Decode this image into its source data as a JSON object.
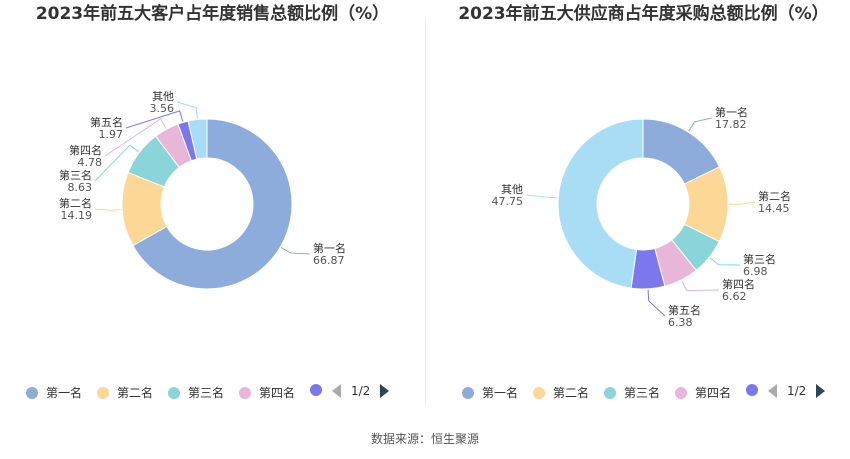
{
  "chart_data": [
    {
      "type": "pie",
      "title": "2023年前五大客户占年度销售总额比例（%）",
      "categories": [
        "第一名",
        "第二名",
        "第三名",
        "第四名",
        "第五名",
        "其他"
      ],
      "values": [
        66.87,
        14.19,
        8.63,
        4.78,
        1.97,
        3.56
      ],
      "colors": [
        "#8eacdb",
        "#fdd795",
        "#8ad5d9",
        "#e7b6d9",
        "#7b78ed",
        "#a9ddf6"
      ],
      "legend_visible": [
        "第一名",
        "第二名",
        "第三名",
        "第四名",
        "第五名"
      ],
      "legend_placement": "bottom",
      "pager": "1/2"
    },
    {
      "type": "pie",
      "title": "2023年前五大供应商占年度采购总额比例（%）",
      "categories": [
        "第一名",
        "第二名",
        "第三名",
        "第四名",
        "第五名",
        "其他"
      ],
      "values": [
        17.82,
        14.45,
        6.98,
        6.62,
        6.38,
        47.75
      ],
      "colors": [
        "#8eacdb",
        "#fdd795",
        "#8ad5d9",
        "#e7b6d9",
        "#7b78ed",
        "#a9ddf6"
      ],
      "legend_visible": [
        "第一名",
        "第二名",
        "第三名",
        "第四名",
        "第五名"
      ],
      "legend_placement": "bottom",
      "pager": "1/2"
    }
  ],
  "source": "数据来源：恒生聚源"
}
